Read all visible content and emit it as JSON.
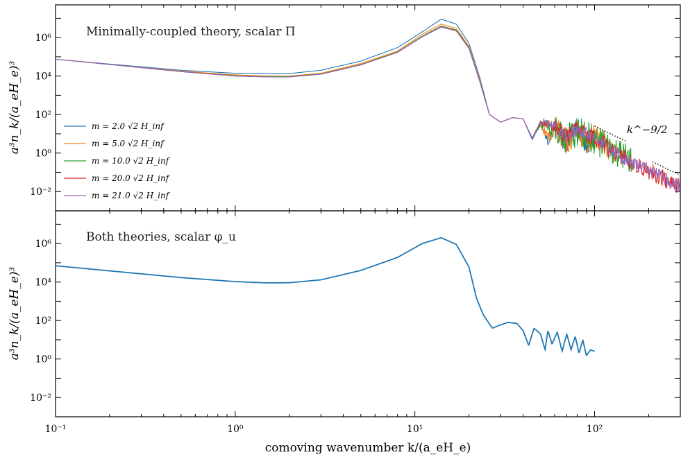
{
  "chart_data": [
    {
      "type": "line",
      "title": "Minimally-coupled theory, scalar Π",
      "ylabel": "a³n_k/(a_eH_e)³",
      "xlabel": "",
      "xscale": "log",
      "yscale": "log",
      "xlim": [
        0.1,
        300
      ],
      "ylim": [
        0.001,
        50000000
      ],
      "yticks": [
        {
          "value": 1000000,
          "label": "10⁶"
        },
        {
          "value": 10000,
          "label": "10⁴"
        },
        {
          "value": 100,
          "label": "10²"
        },
        {
          "value": 1,
          "label": "10⁰"
        },
        {
          "value": 0.01,
          "label": "10⁻²"
        }
      ],
      "legend_position": "center-left",
      "series": [
        {
          "name": "m = 2.0 √2 H_inf",
          "color": "#1f77b4",
          "x": [
            0.1,
            0.2,
            0.5,
            1,
            1.5,
            2,
            3,
            5,
            8,
            11,
            14,
            17,
            20,
            23,
            26,
            30,
            35,
            40,
            45,
            50,
            55,
            60,
            70,
            80,
            90,
            100
          ],
          "y": [
            75000,
            42000,
            20000,
            14000,
            13000,
            13500,
            20000,
            60000,
            300000,
            2000000,
            9000000,
            5000000,
            500000,
            8000,
            100,
            40,
            70,
            60,
            5,
            40,
            5,
            30,
            5,
            25,
            4,
            10
          ],
          "noise": 0.6
        },
        {
          "name": "m = 5.0 √2 H_inf",
          "color": "#ff7f0e",
          "x": [
            0.1,
            0.2,
            0.5,
            1,
            1.5,
            2,
            3,
            5,
            8,
            11,
            14,
            17,
            20,
            23,
            26,
            30,
            35,
            40,
            45,
            50,
            55,
            60,
            70,
            80,
            90,
            100,
            130
          ],
          "y": [
            75000,
            40000,
            18000,
            11500,
            10000,
            10000,
            14000,
            45000,
            200000,
            1500000,
            5000000,
            3000000,
            350000,
            6000,
            100,
            40,
            70,
            60,
            6,
            40,
            6,
            30,
            6,
            20,
            5,
            8,
            2
          ],
          "noise": 0.7
        },
        {
          "name": "m = 10.0 √2 H_inf",
          "color": "#2ca02c",
          "x": [
            0.1,
            0.2,
            0.5,
            1,
            1.5,
            2,
            3,
            5,
            8,
            11,
            14,
            17,
            20,
            23,
            26,
            30,
            35,
            40,
            45,
            50,
            60,
            70,
            80,
            100,
            130,
            160
          ],
          "y": [
            75000,
            40000,
            17000,
            10500,
            9500,
            9500,
            13000,
            40000,
            180000,
            1200000,
            4000000,
            2500000,
            300000,
            5000,
            100,
            40,
            70,
            60,
            6,
            40,
            30,
            8,
            20,
            8,
            1.5,
            0.5
          ],
          "noise": 0.8
        },
        {
          "name": "m = 20.0 √2 H_inf",
          "color": "#d62728",
          "x": [
            0.1,
            0.2,
            0.5,
            1,
            1.5,
            2,
            3,
            5,
            8,
            11,
            14,
            17,
            20,
            23,
            26,
            30,
            35,
            40,
            45,
            50,
            60,
            70,
            80,
            100,
            130,
            160,
            200,
            250,
            300
          ],
          "y": [
            75000,
            40000,
            17000,
            10000,
            9000,
            9000,
            12500,
            38000,
            170000,
            1100000,
            3600000,
            2300000,
            280000,
            5000,
            100,
            40,
            70,
            60,
            6,
            40,
            30,
            8,
            20,
            8,
            1.2,
            0.4,
            0.15,
            0.05,
            0.02
          ],
          "noise": 0.45
        },
        {
          "name": "m = 21.0 √2 H_inf",
          "color": "#9467bd",
          "x": [
            0.1,
            0.2,
            0.5,
            1,
            1.5,
            2,
            3,
            5,
            8,
            11,
            14,
            17,
            20,
            23,
            26,
            30,
            35,
            40,
            45,
            50,
            60,
            70,
            80,
            100,
            130,
            160,
            200,
            250,
            300
          ],
          "y": [
            75000,
            40000,
            17000,
            10000,
            9000,
            9000,
            12500,
            38000,
            170000,
            1100000,
            3500000,
            2200000,
            270000,
            5000,
            100,
            40,
            70,
            60,
            6,
            40,
            30,
            8,
            20,
            8,
            1.2,
            0.4,
            0.15,
            0.05,
            0.02
          ],
          "noise": 0.35
        }
      ],
      "annotation": {
        "text": "k^−9/2",
        "power": -4.5
      }
    },
    {
      "type": "line",
      "title": "Both theories, scalar φ_u",
      "ylabel": "a³n_k/(a_eH_e)³",
      "xlabel": "comoving wavenumber k/(a_eH_e)",
      "xscale": "log",
      "yscale": "log",
      "xlim": [
        0.1,
        300
      ],
      "ylim": [
        0.001,
        50000000
      ],
      "xticks": [
        {
          "value": 0.1,
          "label": "10⁻¹"
        },
        {
          "value": 1,
          "label": "10⁰"
        },
        {
          "value": 10,
          "label": "10¹"
        },
        {
          "value": 100,
          "label": "10²"
        }
      ],
      "yticks": [
        {
          "value": 1000000,
          "label": "10⁶"
        },
        {
          "value": 10000,
          "label": "10⁴"
        },
        {
          "value": 100,
          "label": "10²"
        },
        {
          "value": 1,
          "label": "10⁰"
        },
        {
          "value": 0.01,
          "label": "10⁻²"
        }
      ],
      "series": [
        {
          "color": "#1f77b4",
          "x": [
            0.1,
            0.2,
            0.5,
            1,
            1.5,
            2,
            3,
            5,
            8,
            11,
            14,
            17,
            20,
            22,
            24,
            27,
            30,
            33,
            37,
            40,
            43,
            46,
            50,
            53,
            55,
            58,
            62,
            66,
            70,
            74,
            78,
            82,
            86,
            90,
            95,
            100
          ],
          "y": [
            70000,
            38000,
            17000,
            10500,
            9000,
            9200,
            13000,
            40000,
            190000,
            1000000,
            2000000,
            900000,
            60000,
            1500,
            200,
            40,
            60,
            80,
            70,
            30,
            5,
            40,
            20,
            3,
            30,
            6,
            25,
            2.5,
            20,
            3,
            15,
            2,
            10,
            1.5,
            3,
            2.5
          ],
          "noise": 0
        }
      ]
    }
  ],
  "colors": {
    "axis": "#000000",
    "background": "#ffffff"
  }
}
